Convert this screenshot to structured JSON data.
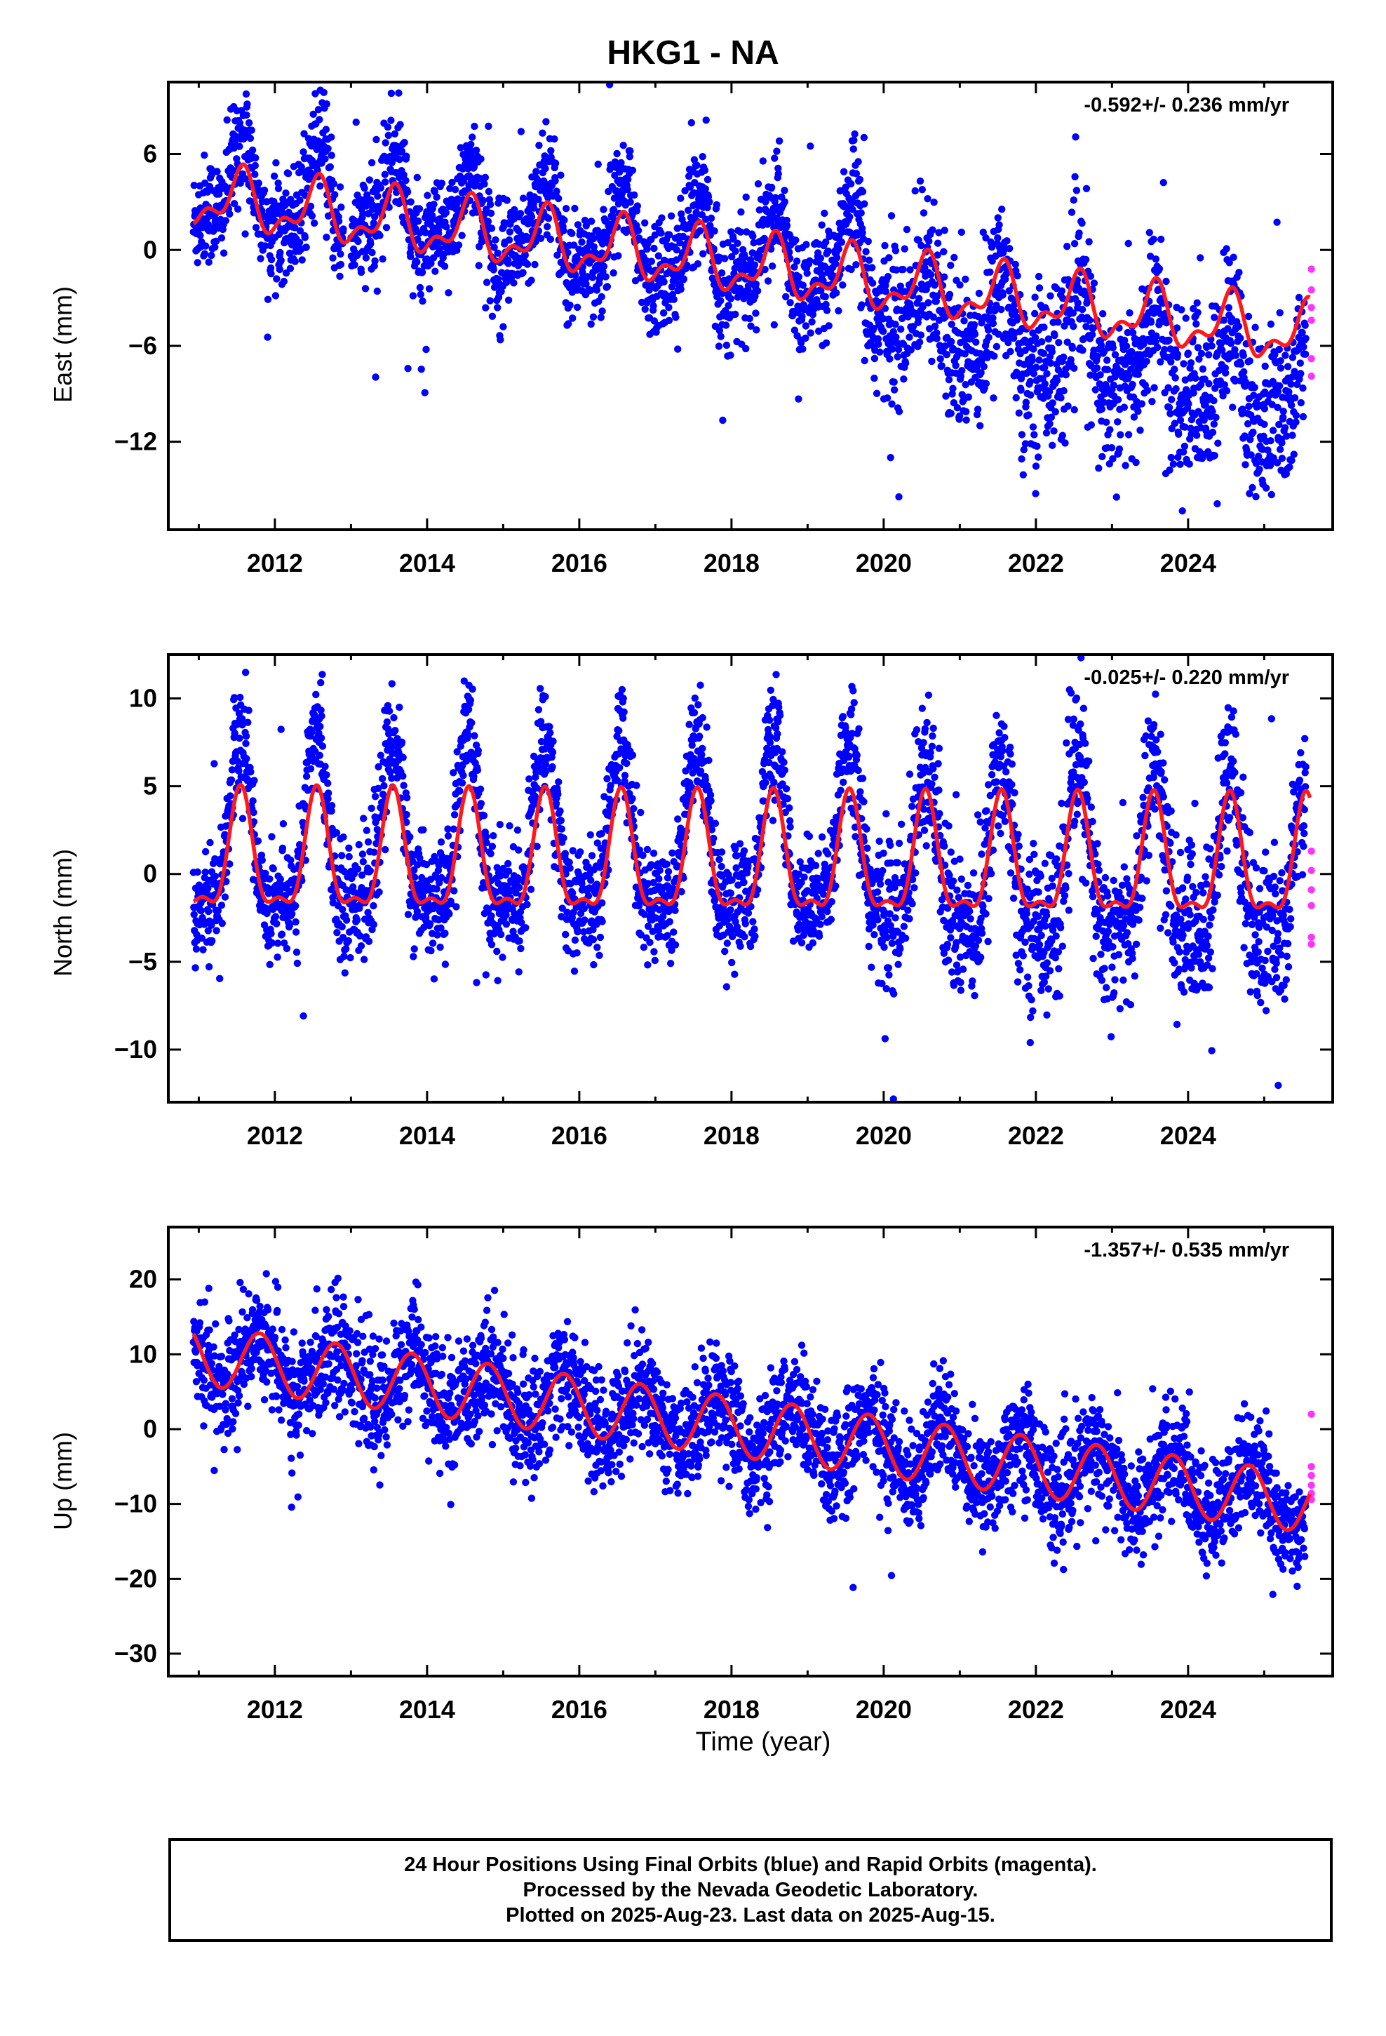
{
  "title": "HKG1 - NA",
  "xlabel": "Time (year)",
  "caption": [
    "24 Hour Positions Using Final Orbits (blue) and Rapid Orbits (magenta).",
    "Processed by the Nevada Geodetic Laboratory.",
    "Plotted on 2025-Aug-23. Last data on 2025-Aug-15."
  ],
  "colors": {
    "final": "#0000ff",
    "rapid": "#ff33ff",
    "model": "#ff1a1a",
    "axes": "#000000"
  },
  "chart_data": [
    {
      "type": "scatter",
      "ylabel": "East (mm)",
      "rate_label": "-0.592+/- 0.236 mm/yr",
      "xlim": [
        2010.6,
        2025.9
      ],
      "ylim": [
        -17.5,
        10.5
      ],
      "xticks": [
        2012,
        2014,
        2016,
        2018,
        2020,
        2022,
        2024
      ],
      "yticks": [
        6,
        0,
        -6,
        -12
      ],
      "ytick_labels": [
        "6",
        "0",
        "−6",
        "−12"
      ],
      "model": {
        "start": 2010.93,
        "end": 2025.6,
        "offset": 3.3,
        "trend": -0.592,
        "annual_amp": 1.6,
        "annual_phase": 2011.55,
        "semi_amp": 0.9,
        "semi_phase": 2011.1
      },
      "scatter": {
        "start": 2010.93,
        "end": 2025.55,
        "extra_trend_after_2019": -2.0,
        "noise_before": 1.7,
        "noise_after": 2.6,
        "annual_boost": 1.8,
        "boost_phase": 2013.55
      },
      "rapid": {
        "x": 2025.62,
        "values": [
          -1.2,
          -2.5,
          -3.6,
          -4.4,
          -6.8,
          -7.9
        ]
      }
    },
    {
      "type": "scatter",
      "ylabel": "North (mm)",
      "rate_label": "-0.025+/- 0.220 mm/yr",
      "xlim": [
        2010.6,
        2025.9
      ],
      "ylim": [
        -13,
        12.5
      ],
      "xticks": [
        2012,
        2014,
        2016,
        2018,
        2020,
        2022,
        2024
      ],
      "yticks": [
        10,
        5,
        0,
        -5,
        -10
      ],
      "ytick_labels": [
        "10",
        "5",
        "0",
        "−5",
        "−10"
      ],
      "model": {
        "start": 2010.93,
        "end": 2025.6,
        "offset": 0.7,
        "trend": -0.025,
        "annual_amp": 3.2,
        "annual_phase": 2011.55,
        "semi_amp": 1.2,
        "semi_phase": 2011.55
      },
      "scatter": {
        "start": 2010.93,
        "end": 2025.55,
        "extra_trend_after_2019": -0.8,
        "noise_before": 1.6,
        "noise_after": 2.2,
        "annual_boost": 2.8,
        "boost_phase": 2013.55
      },
      "rapid": {
        "x": 2025.62,
        "values": [
          1.3,
          0.2,
          -0.9,
          -1.8,
          -3.6,
          -4.0
        ]
      }
    },
    {
      "type": "scatter",
      "ylabel": "Up (mm)",
      "rate_label": "-1.357+/- 0.535 mm/yr",
      "xlim": [
        2010.6,
        2025.9
      ],
      "ylim": [
        -33,
        27
      ],
      "xticks": [
        2012,
        2014,
        2016,
        2018,
        2020,
        2022,
        2024
      ],
      "yticks": [
        20,
        10,
        0,
        -10,
        -20,
        -30
      ],
      "ytick_labels": [
        "20",
        "10",
        "0",
        "−10",
        "−20",
        "−30"
      ],
      "model": {
        "start": 2010.93,
        "end": 2025.6,
        "offset": 10.0,
        "trend": -1.357,
        "annual_amp": 4.0,
        "annual_phase": 2011.8,
        "semi_amp": 0.0,
        "semi_phase": 2011.8
      },
      "scatter": {
        "start": 2010.93,
        "end": 2025.55,
        "extra_trend_after_2019": 0.0,
        "noise_before": 3.8,
        "noise_after": 3.6,
        "annual_boost": 0.0,
        "boost_phase": 2013.55
      },
      "rapid": {
        "x": 2025.62,
        "values": [
          2.0,
          -5.0,
          -6.2,
          -7.5,
          -8.6,
          -9.4
        ]
      }
    }
  ]
}
